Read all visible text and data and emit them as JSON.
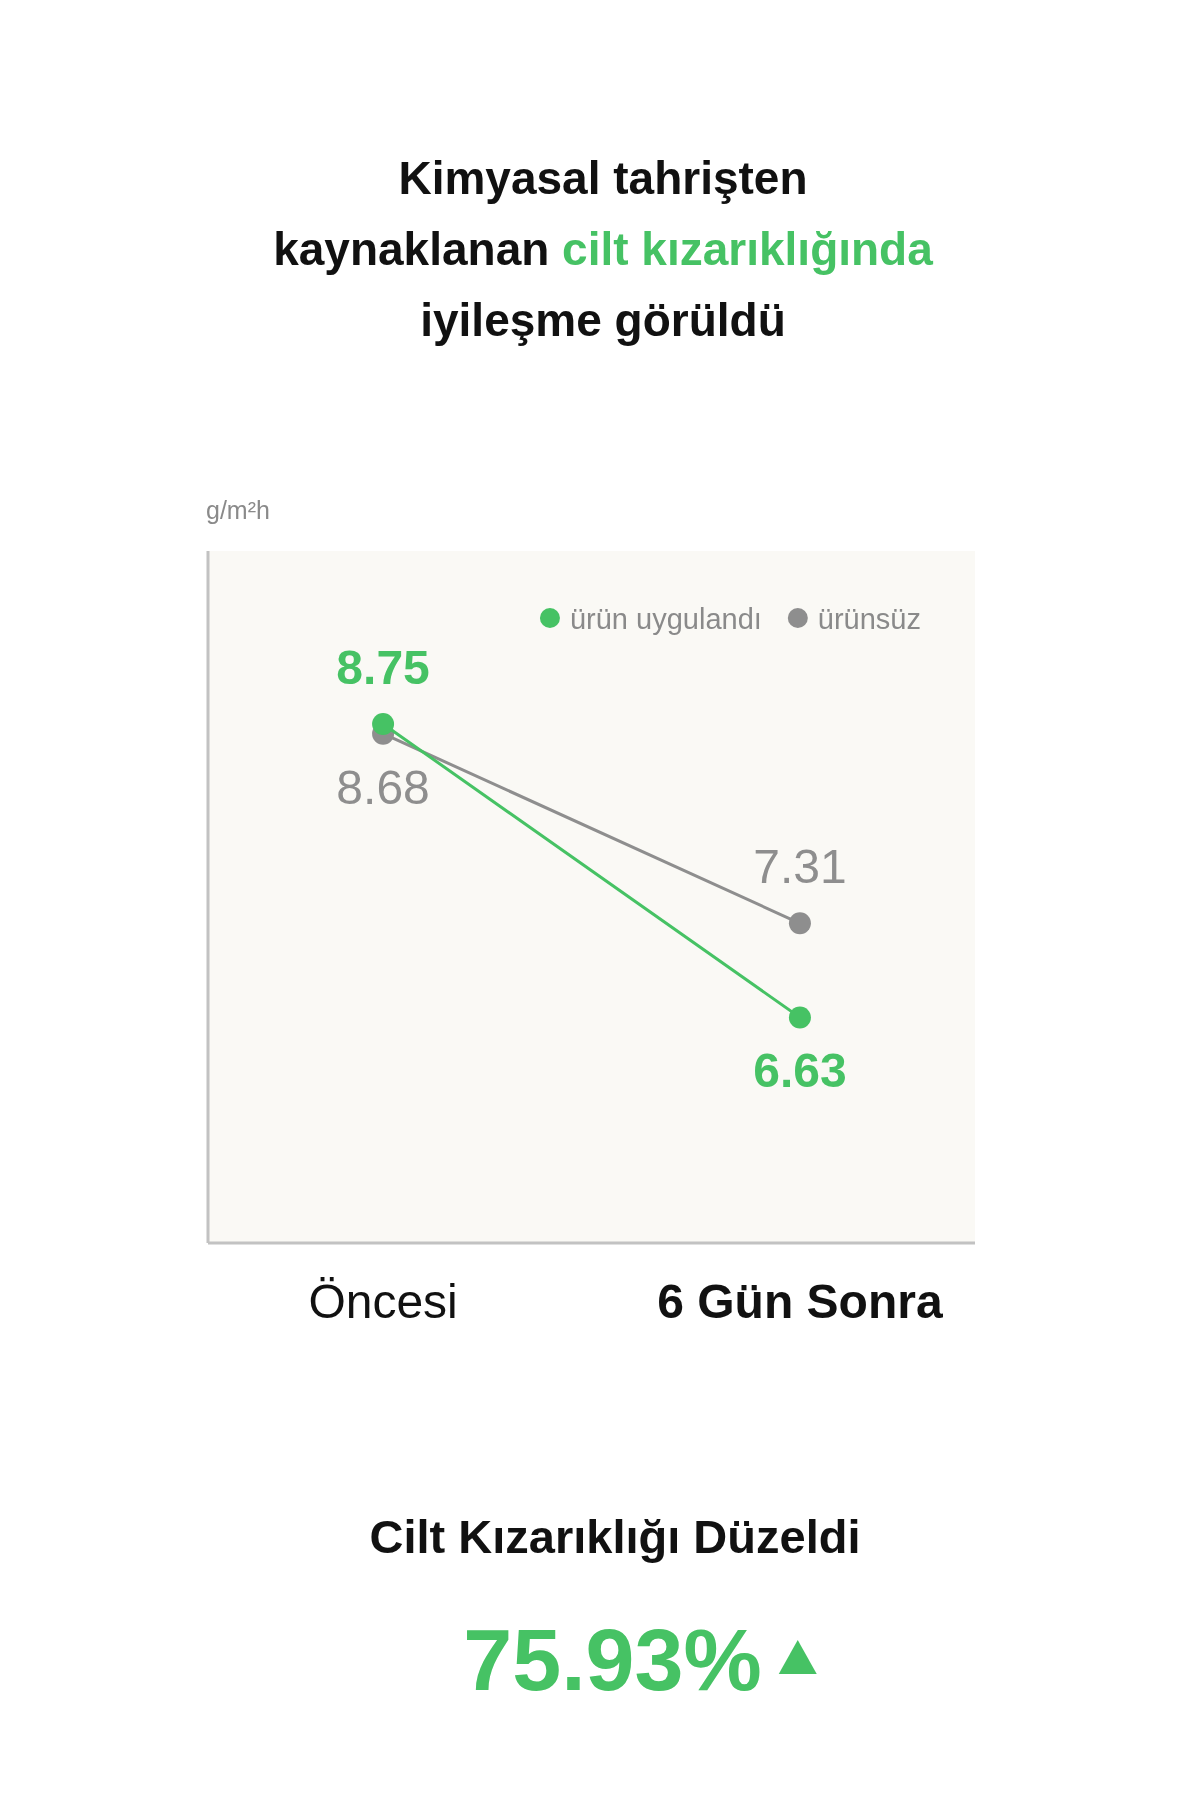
{
  "chart_data": {
    "type": "line",
    "title": "Kimyasal tahrişten kaynaklanan cilt kızarıklığında iyileşme görüldü",
    "ylabel": "g/m²h",
    "categories": [
      "Öncesi",
      "6 Gün Sonra"
    ],
    "series": [
      {
        "name": "ürün uygulandı",
        "color": "#46c264",
        "values": [
          8.75,
          6.63
        ]
      },
      {
        "name": "ürünsüz",
        "color": "#8e8e8e",
        "values": [
          8.68,
          7.31
        ]
      }
    ],
    "ylim": [
      5,
      10
    ],
    "data_labels": true,
    "marker": "circle",
    "line_style": "solid",
    "legend": "top right",
    "tick_labels": "x",
    "annotations": [
      "Cilt Kızarıklığı Düzeldi",
      "75.93%"
    ]
  }
}
